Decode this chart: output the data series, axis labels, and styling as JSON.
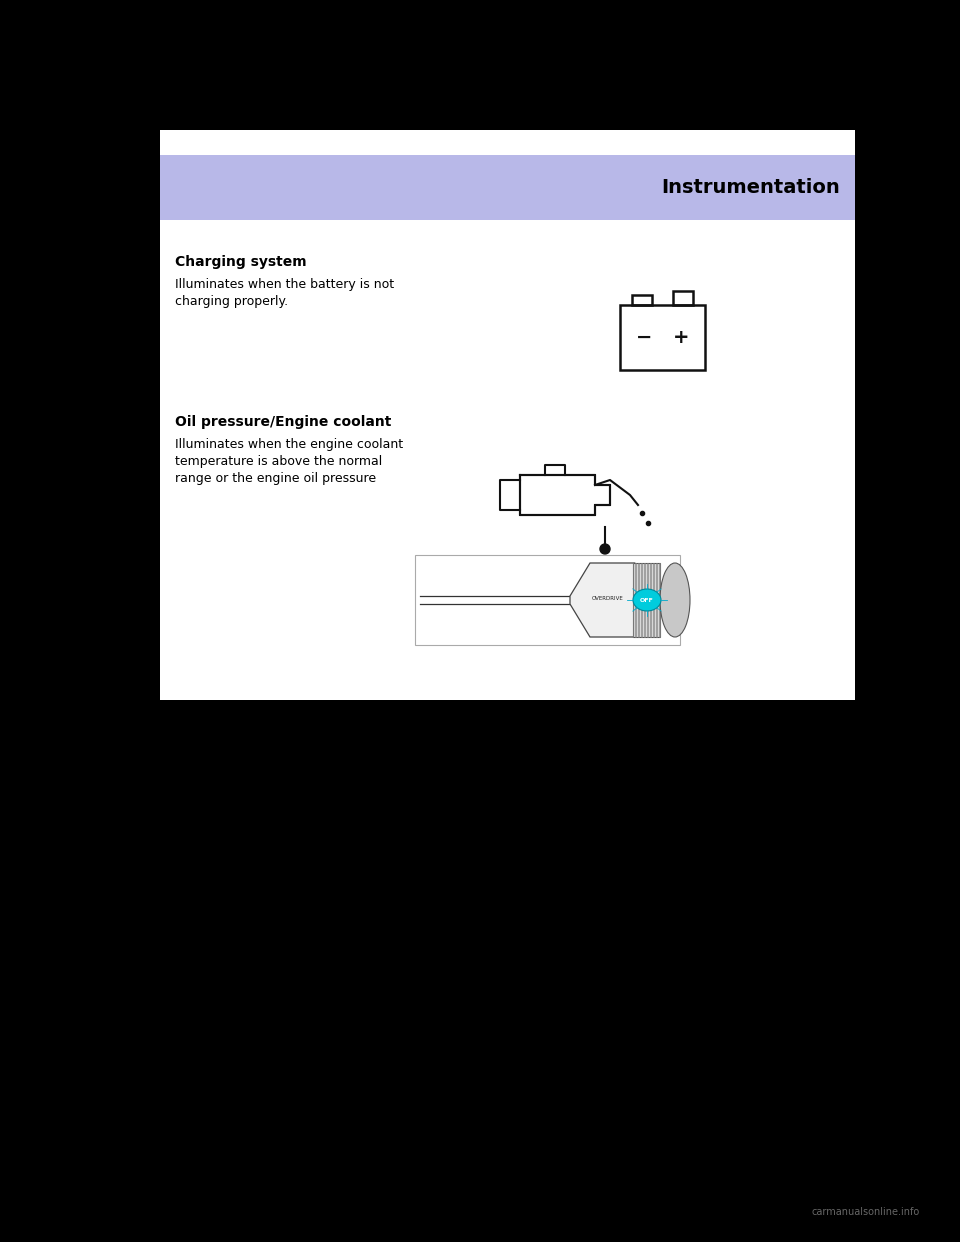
{
  "bg_color": "#000000",
  "page_bg": "#ffffff",
  "header_bg_color": "#b8b8e8",
  "header_text": "Instrumentation",
  "header_text_color": "#000000",
  "text_color": "#000000",
  "title_color": "#000000",
  "watermark": "carmanualsonline.info",
  "watermark_color": "#666666",
  "section1_title": "Charging system",
  "section1_body": "Illuminates when the battery is not\ncharging properly.",
  "section2_title": "Oil pressure/Engine coolant",
  "section2_body": "Illuminates when the engine coolant\ntemperature is above the normal\nrange or the engine oil pressure",
  "font_size_header": 14,
  "font_size_title": 10,
  "font_size_body": 9,
  "font_size_watermark": 7
}
